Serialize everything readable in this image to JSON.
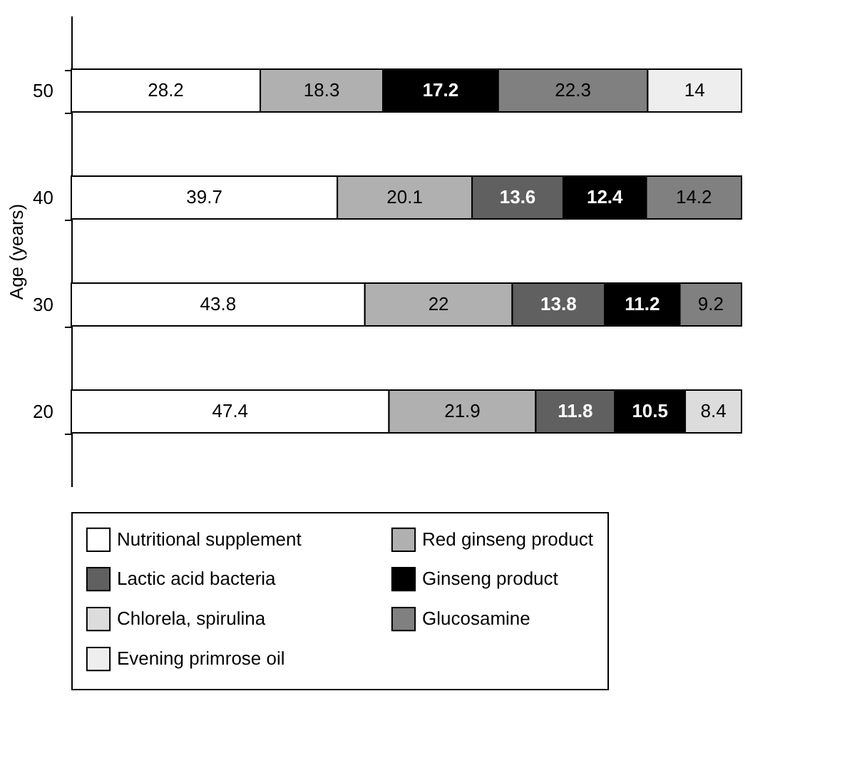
{
  "chart_data": {
    "type": "bar",
    "orientation": "horizontal",
    "stacked": true,
    "tick_labels": "y",
    "data_labels": true,
    "grid": false,
    "legend": "bottom",
    "ylabel": "Age (years)",
    "categories": [
      "50",
      "40",
      "30",
      "20"
    ],
    "series": [
      {
        "name": "Nutritional supplement",
        "color": "#ffffff",
        "values": [
          28.2,
          39.7,
          43.8,
          47.4
        ]
      },
      {
        "name": "Red ginseng product",
        "color": "#b0b0b0",
        "values": [
          18.3,
          20.1,
          22,
          21.9
        ]
      },
      {
        "name": "Lactic acid bacteria",
        "color": "#606060",
        "values": [
          null,
          13.6,
          13.8,
          11.8
        ]
      },
      {
        "name": "Ginseng product",
        "color": "#000000",
        "values": [
          17.2,
          12.4,
          11.2,
          10.5
        ]
      },
      {
        "name": "Chlorela, spirulina",
        "color": "#dcdcdc",
        "values": [
          null,
          null,
          null,
          8.4
        ]
      },
      {
        "name": "Glucosamine",
        "color": "#808080",
        "values": [
          22.3,
          14.2,
          9.2,
          null
        ]
      },
      {
        "name": "Evening primrose oil",
        "color": "#eeeeee",
        "values": [
          14,
          null,
          null,
          null
        ]
      }
    ]
  }
}
